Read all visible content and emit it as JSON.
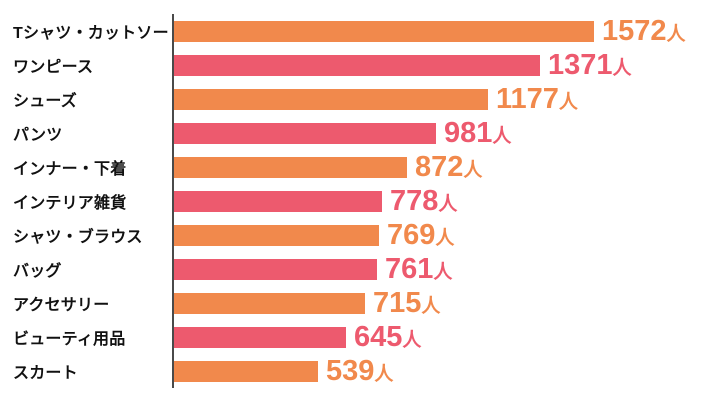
{
  "colors": {
    "orange": "#F1894C",
    "pink": "#ED5A6E",
    "axis": "#4A4A4A",
    "category_text": "#111111",
    "background": "#FFFFFF"
  },
  "chart_data": {
    "type": "bar",
    "orientation": "horizontal",
    "title": "",
    "xlabel": "",
    "ylabel": "",
    "categories": [
      "Tシャツ・カットソー",
      "ワンピース",
      "シューズ",
      "パンツ",
      "インナー・下着",
      "インテリア雑貨",
      "シャツ・ブラウス",
      "バッグ",
      "アクセサリー",
      "ビューティ用品",
      "スカート"
    ],
    "values": [
      1572,
      1371,
      1177,
      981,
      872,
      778,
      769,
      761,
      715,
      645,
      539
    ],
    "value_unit": "人",
    "bar_colors": [
      "orange",
      "pink",
      "orange",
      "pink",
      "orange",
      "pink",
      "orange",
      "pink",
      "orange",
      "pink",
      "orange"
    ],
    "value_labels_at_bar_end": true,
    "layout": {
      "grid": "off",
      "legend": "none",
      "axis_ticks": "none",
      "baseline_visible": true,
      "xlim": [
        0,
        2030
      ]
    }
  }
}
